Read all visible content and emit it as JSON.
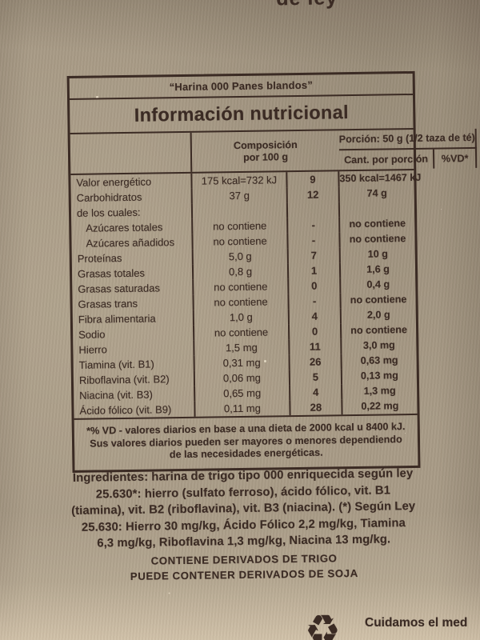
{
  "colors": {
    "paper": "#a89b86",
    "paper_light": "#d6c6ac",
    "ink": "#3b2b24"
  },
  "top_edge_text": "de ley",
  "nutrition_label": {
    "product_name": "“Harina 000 Panes blandos”",
    "title": "Información nutricional",
    "header": {
      "portion": "Porción: 50 g (1/2 taza de té)",
      "amount_col": "Cant. por porción",
      "dv_col": "%VD*",
      "composition_line1": "Composición",
      "composition_line2": "por 100 g"
    },
    "rows": [
      {
        "label": "Valor energético",
        "amount": "175 kcal=732 kJ",
        "dv": "9",
        "per100": "350 kcal=1467 kJ",
        "indent": false
      },
      {
        "label": "Carbohidratos",
        "amount": "37 g",
        "dv": "12",
        "per100": "74 g",
        "indent": false
      },
      {
        "label": "de los cuales:",
        "amount": "",
        "dv": "",
        "per100": "",
        "indent": false
      },
      {
        "label": "Azúcares totales",
        "amount": "no contiene",
        "dv": "-",
        "per100": "no contiene",
        "indent": true
      },
      {
        "label": "Azúcares añadidos",
        "amount": "no contiene",
        "dv": "-",
        "per100": "no contiene",
        "indent": true
      },
      {
        "label": "Proteínas",
        "amount": "5,0 g",
        "dv": "7",
        "per100": "10 g",
        "indent": false
      },
      {
        "label": "Grasas totales",
        "amount": "0,8 g",
        "dv": "1",
        "per100": "1,6 g",
        "indent": false
      },
      {
        "label": "Grasas saturadas",
        "amount": "no contiene",
        "dv": "0",
        "per100": "0,4 g",
        "indent": false
      },
      {
        "label": "Grasas trans",
        "amount": "no contiene",
        "dv": "-",
        "per100": "no contiene",
        "indent": false
      },
      {
        "label": "Fibra alimentaria",
        "amount": "1,0 g",
        "dv": "4",
        "per100": "2,0 g",
        "indent": false
      },
      {
        "label": "Sodio",
        "amount": "no contiene",
        "dv": "0",
        "per100": "no contiene",
        "indent": false
      },
      {
        "label": "Hierro",
        "amount": "1,5 mg",
        "dv": "11",
        "per100": "3,0 mg",
        "indent": false
      },
      {
        "label": "Tiamina (vit. B1)",
        "amount": "0,31 mg",
        "dv": "26",
        "per100": "0,63 mg",
        "indent": false
      },
      {
        "label": "Riboflavina (vit. B2)",
        "amount": "0,06 mg",
        "dv": "5",
        "per100": "0,13 mg",
        "indent": false
      },
      {
        "label": "Niacina (vit. B3)",
        "amount": "0,65 mg",
        "dv": "4",
        "per100": "1,3 mg",
        "indent": false
      },
      {
        "label": "Ácido fólico (vit. B9)",
        "amount": "0,11 mg",
        "dv": "28",
        "per100": "0,22 mg",
        "indent": false
      }
    ],
    "footnote_lines": [
      "*% VD - valores diarios en base a una dieta de 2000 kcal u 8400 kJ.",
      "Sus valores diarios pueden ser mayores o menores dependiendo",
      "de las necesidades energéticas."
    ]
  },
  "ingredients_lines": [
    "Ingredientes: harina de trigo tipo 000 enriquecida según ley",
    "25.630*:  hierro (sulfato ferroso), ácido fólico, vit. B1",
    "(tiamina), vit. B2 (riboflavina), vit. B3 (niacina). (*) Según Ley",
    "25.630: Hierro 30 mg/kg, Ácido Fólico 2,2 mg/kg, Tiamina",
    "6,3 mg/kg, Riboflavina 1,3 mg/kg, Niacina 13 mg/kg."
  ],
  "allergen_lines": [
    "CONTIENE DERIVADOS DE TRIGO",
    "PUEDE CONTENER DERIVADOS DE SOJA"
  ],
  "footer": {
    "recycle_glyph": "♻",
    "eco_text": "Cuidamos el med"
  }
}
